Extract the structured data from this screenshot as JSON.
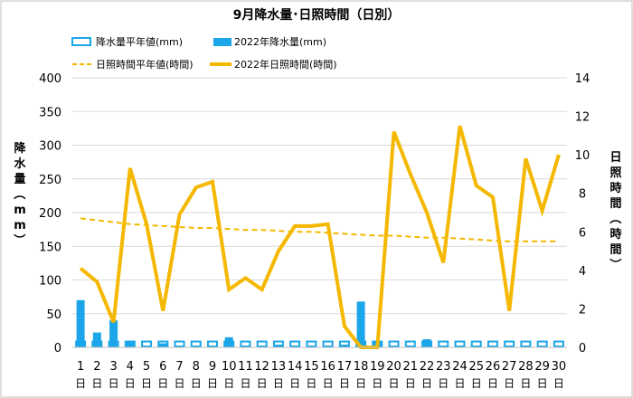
{
  "chart_data": {
    "type": "bar",
    "title": "9月降水量･日照時間（日別）",
    "y_left_label": "降水量（mm）",
    "y_right_label": "日照時間（時間）",
    "y_left_range": [
      0,
      400
    ],
    "y_left_ticks": [
      0,
      50,
      100,
      150,
      200,
      250,
      300,
      350,
      400
    ],
    "y_right_range": [
      0,
      14
    ],
    "y_right_ticks": [
      0,
      2,
      4,
      6,
      8,
      10,
      12,
      14
    ],
    "x_categories": [
      "1",
      "2",
      "3",
      "4",
      "5",
      "6",
      "7",
      "8",
      "9",
      "10",
      "11",
      "12",
      "13",
      "14",
      "15",
      "16",
      "17",
      "18",
      "19",
      "20",
      "21",
      "22",
      "23",
      "24",
      "25",
      "26",
      "27",
      "28",
      "29",
      "30"
    ],
    "x_day_suffix": "日",
    "grid": "horizontal",
    "legend_position": "top",
    "series": [
      {
        "name": "降水量平年値(mm)",
        "kind": "bar-outline",
        "axis": "left",
        "color": "#1aa6e8",
        "values": [
          10,
          10,
          10,
          10,
          10,
          10,
          10,
          10,
          10,
          10,
          10,
          10,
          10,
          10,
          10,
          10,
          10,
          10,
          10,
          10,
          10,
          10,
          10,
          10,
          10,
          10,
          10,
          10,
          10,
          10
        ]
      },
      {
        "name": "2022年降水量(mm)",
        "kind": "bar",
        "axis": "left",
        "color": "#1aa6e8",
        "values": [
          70,
          22,
          40,
          8,
          0,
          6,
          0,
          0,
          0,
          15,
          0,
          0,
          4,
          0,
          0,
          0,
          4,
          68,
          8,
          0,
          0,
          12,
          0,
          0,
          0,
          0,
          0,
          0,
          0,
          0
        ]
      },
      {
        "name": "日照時間平年値(時間)",
        "kind": "line-dashed",
        "axis": "right",
        "color": "#f5b800",
        "values": [
          6.7,
          6.6,
          6.5,
          6.4,
          6.35,
          6.3,
          6.25,
          6.2,
          6.2,
          6.15,
          6.1,
          6.1,
          6.05,
          6.0,
          6.0,
          5.95,
          5.9,
          5.85,
          5.8,
          5.8,
          5.75,
          5.7,
          5.7,
          5.65,
          5.6,
          5.55,
          5.5,
          5.5,
          5.5,
          5.5
        ]
      },
      {
        "name": "2022年日照時間(時間)",
        "kind": "line",
        "axis": "right",
        "color": "#f5b800",
        "values": [
          4.1,
          3.4,
          1.3,
          9.3,
          6.4,
          1.9,
          6.9,
          8.3,
          8.6,
          3.0,
          3.6,
          3.0,
          5.0,
          6.3,
          6.3,
          6.4,
          1.1,
          0.0,
          0.0,
          11.2,
          9.0,
          7.0,
          4.4,
          11.5,
          8.4,
          7.8,
          1.9,
          9.8,
          7.1,
          10.0
        ]
      }
    ]
  }
}
